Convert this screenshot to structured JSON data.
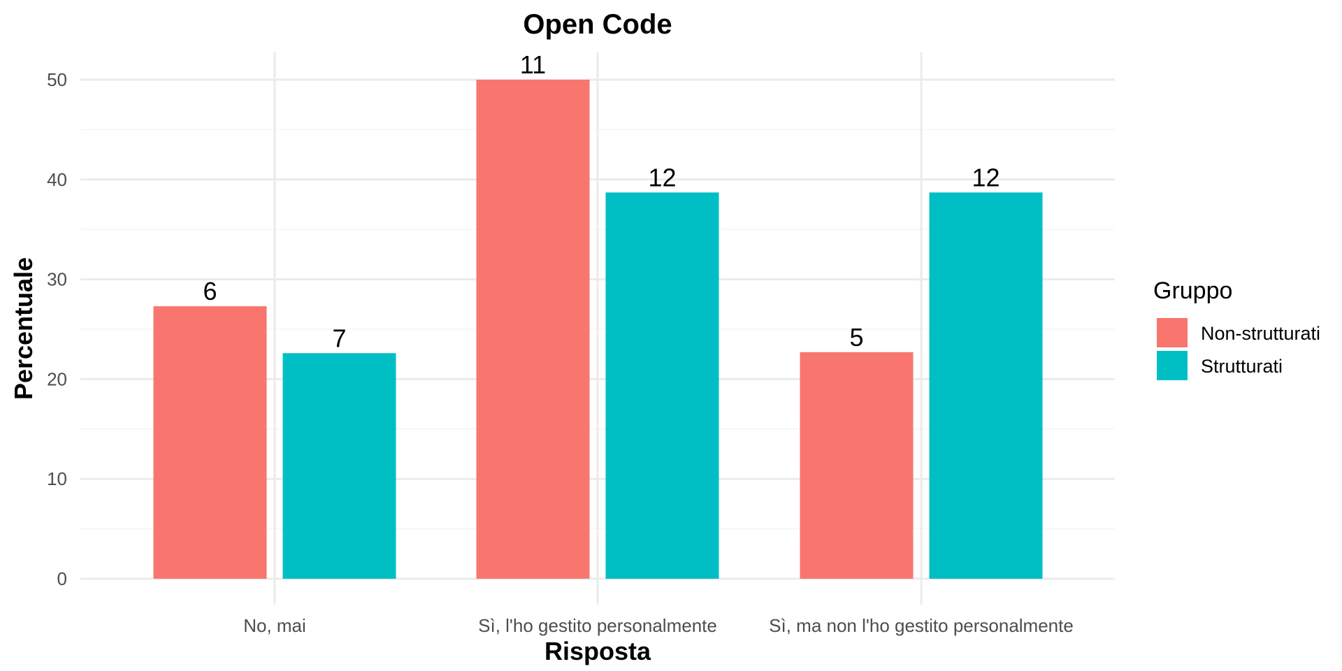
{
  "chart_data": {
    "type": "bar",
    "title": "Open Code",
    "xlabel": "Risposta",
    "ylabel": "Percentuale",
    "categories": [
      "No, mai",
      "Sì, l'ho gestito personalmente",
      "Sì, ma non l'ho gestito personalmente"
    ],
    "series": [
      {
        "name": "Non-strutturati",
        "color": "#F8766D",
        "values": [
          27.3,
          50.0,
          22.7
        ],
        "labels": [
          "6",
          "11",
          "5"
        ]
      },
      {
        "name": "Strutturati",
        "color": "#00BFC4",
        "values": [
          22.6,
          38.7,
          38.7
        ],
        "labels": [
          "7",
          "12",
          "12"
        ]
      }
    ],
    "ylim": [
      0,
      52.5
    ],
    "yticks": [
      0,
      10,
      20,
      30,
      40,
      50
    ],
    "grid": true,
    "legend": {
      "title": "Gruppo",
      "position": "right"
    }
  }
}
